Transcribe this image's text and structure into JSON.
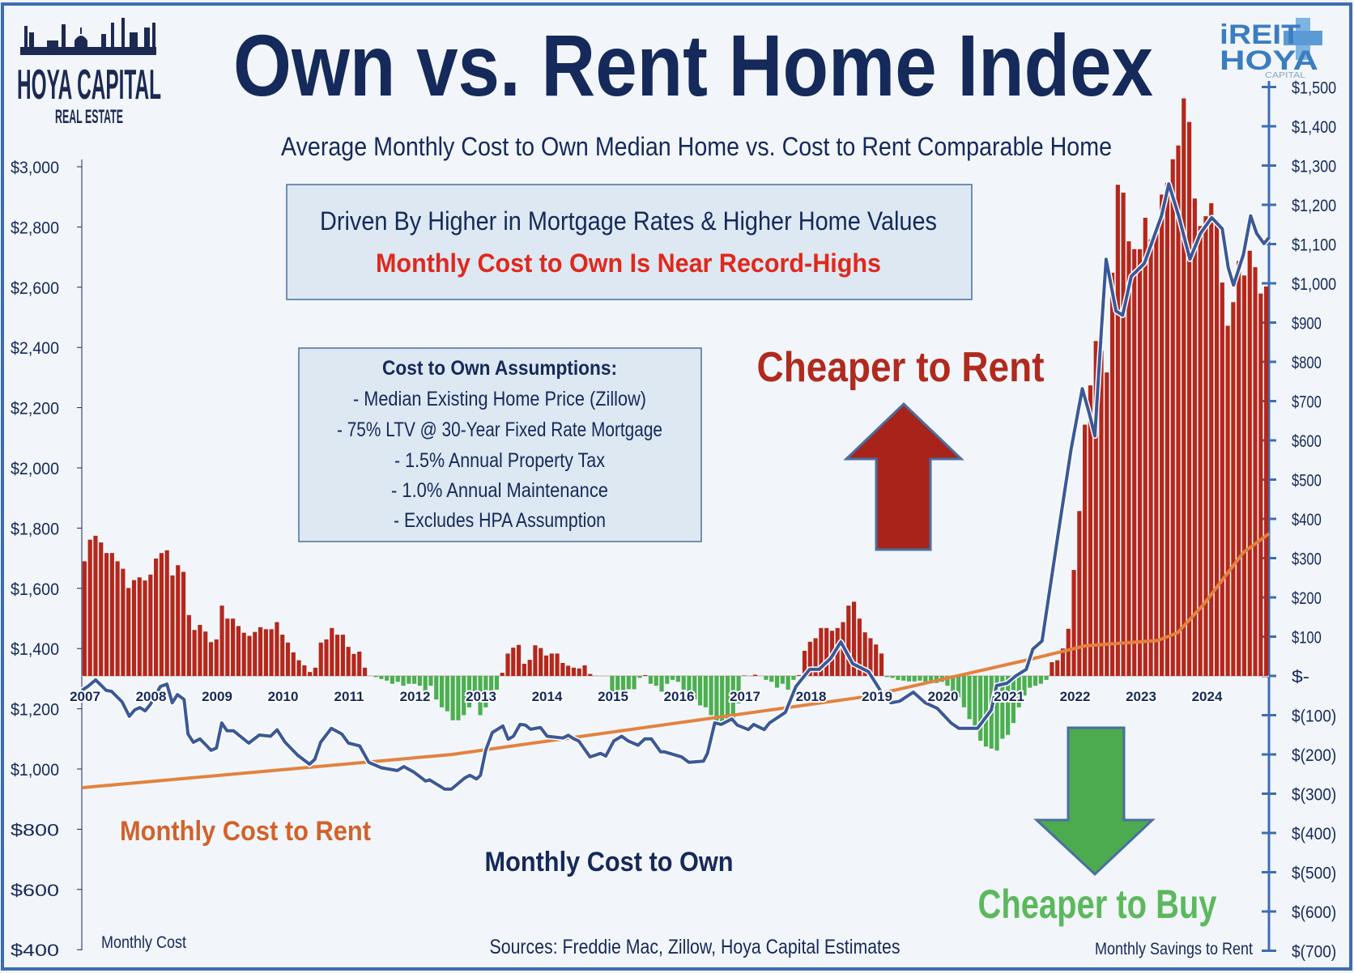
{
  "logo_left": {
    "name": "HOYA CAPITAL",
    "sub": "REAL ESTATE"
  },
  "logo_right": {
    "line1": "iREIT",
    "line2": "HOYA",
    "line3": "CAPITAL"
  },
  "title": "Own vs. Rent Home Index",
  "subtitle": "Average Monthly Cost to Own Median Home vs. Cost to Rent Comparable Home",
  "callout": {
    "line1": "Driven By Higher in Mortgage Rates & Higher Home Values",
    "line2": "Monthly Cost to Own Is Near Record-Highs"
  },
  "assumptions": {
    "header": "Cost to Own Assumptions:",
    "items": [
      "- Median Existing Home Price (Zillow)",
      "- 75% LTV @ 30-Year Fixed Rate Mortgage",
      "- 1.5% Annual Property Tax",
      "- 1.0% Annual Maintenance",
      "- Excludes HPA Assumption"
    ]
  },
  "annotations": {
    "cheaper_rent": "Cheaper to Rent",
    "cheaper_buy": "Cheaper to Buy",
    "rent_label": "Monthly Cost to Rent",
    "own_label": "Monthly Cost to Own",
    "left_axis_title": "Monthly Cost",
    "right_axis_title": "Monthly Savings to Rent",
    "sources": "Sources: Freddie Mac, Zillow, Hoya Capital Estimates"
  },
  "colors": {
    "navy": "#15295a",
    "bar_pos": "#b5271b",
    "bar_neg": "#4caf50",
    "own_line": "#3b5998",
    "rent_line": "#e3823f",
    "red_text": "#e0281c",
    "rent_text": "#d2622a",
    "buy_text": "#5cb85c",
    "frame": "#3d6db0"
  },
  "chart_data": {
    "type": "bar+line",
    "title": "Own vs. Rent Home Index",
    "x_ticks": [
      "2007",
      "2008",
      "2009",
      "2010",
      "2011",
      "2012",
      "2013",
      "2014",
      "2015",
      "2016",
      "2017",
      "2018",
      "2019",
      "2020",
      "2021",
      "2022",
      "2023",
      "2024"
    ],
    "left_axis": {
      "label": "Monthly Cost",
      "range": [
        400,
        3000
      ],
      "ticks": [
        "$3,000",
        "$2,800",
        "$2,600",
        "$2,400",
        "$2,200",
        "$2,000",
        "$1,800",
        "$1,600",
        "$1,400",
        "$1,200",
        "$1,000",
        "$800",
        "$600",
        "$400"
      ],
      "tick_values": [
        3000,
        2800,
        2600,
        2400,
        2200,
        2000,
        1800,
        1600,
        1400,
        1200,
        1000,
        800,
        600,
        400
      ]
    },
    "right_axis": {
      "label": "Monthly Savings to Rent",
      "range": [
        -700,
        1500
      ],
      "ticks": [
        "$1,500",
        "$1,400",
        "$1,300",
        "$1,200",
        "$1,100",
        "$1,000",
        "$900",
        "$800",
        "$700",
        "$600",
        "$500",
        "$400",
        "$300",
        "$200",
        "$100",
        "$-",
        "$(100)",
        "$(200)",
        "$(300)",
        "$(400)",
        "$(500)",
        "$(600)",
        "$(700)"
      ],
      "tick_values": [
        1500,
        1400,
        1300,
        1200,
        1100,
        1000,
        900,
        800,
        700,
        600,
        500,
        400,
        300,
        200,
        100,
        0,
        -100,
        -200,
        -300,
        -400,
        -500,
        -600,
        -700
      ]
    },
    "savings_series": {
      "name": "Monthly Savings to Rent",
      "start": "2007-01",
      "frequency": "monthly",
      "axis": "right",
      "values": [
        292,
        347,
        357,
        340,
        313,
        313,
        292,
        273,
        224,
        244,
        251,
        243,
        258,
        299,
        313,
        320,
        256,
        282,
        265,
        155,
        117,
        130,
        113,
        86,
        93,
        179,
        146,
        146,
        127,
        110,
        102,
        112,
        124,
        119,
        119,
        137,
        105,
        85,
        60,
        40,
        27,
        10,
        21,
        85,
        93,
        122,
        105,
        105,
        74,
        56,
        62,
        21,
        0,
        -3,
        -8,
        -12,
        -20,
        -15,
        -25,
        -20,
        -20,
        -25,
        -40,
        -25,
        -60,
        -80,
        -90,
        -113,
        -113,
        -100,
        -80,
        -60,
        -100,
        -80,
        -50,
        -35,
        8,
        57,
        72,
        79,
        31,
        41,
        78,
        71,
        52,
        57,
        57,
        33,
        26,
        21,
        19,
        27,
        5,
        0,
        0,
        0,
        -58,
        -52,
        -38,
        -34,
        -34,
        -5,
        2,
        -20,
        -25,
        -40,
        -20,
        -10,
        -15,
        -35,
        -45,
        -60,
        -75,
        -80,
        -100,
        -120,
        -120,
        -120,
        -120,
        -70,
        1,
        0,
        3,
        0,
        -10,
        -15,
        -30,
        -20,
        -35,
        -10,
        2,
        64,
        87,
        96,
        122,
        122,
        115,
        122,
        137,
        179,
        189,
        146,
        111,
        96,
        80,
        57,
        -3,
        -5,
        -10,
        -12,
        -14,
        -14,
        -12,
        -15,
        -15,
        -18,
        -15,
        -25,
        -40,
        -55,
        -80,
        -110,
        -140,
        -165,
        -180,
        -185,
        -190,
        -160,
        -150,
        -120,
        -80,
        -50,
        -30,
        -25,
        -20,
        -10,
        35,
        40,
        70,
        120,
        270,
        420,
        640,
        740,
        853,
        828,
        773,
        1027,
        1251,
        1231,
        1107,
        1087,
        1087,
        1167,
        1112,
        1142,
        1226,
        1256,
        1316,
        1351,
        1471,
        1411,
        1216,
        1146,
        1171,
        1204,
        1161,
        1002,
        892,
        952,
        1057,
        1020,
        1083,
        1041,
        974,
        992
      ]
    },
    "own_series": {
      "name": "Monthly Cost to Own",
      "axis": "left",
      "points": [
        [
          2007.0,
          1261
        ],
        [
          2007.09,
          1274
        ],
        [
          2007.21,
          1296
        ],
        [
          2007.37,
          1261
        ],
        [
          2007.45,
          1258
        ],
        [
          2007.61,
          1223
        ],
        [
          2007.72,
          1175
        ],
        [
          2007.8,
          1196
        ],
        [
          2007.88,
          1204
        ],
        [
          2007.96,
          1193
        ],
        [
          2008.04,
          1215
        ],
        [
          2008.19,
          1274
        ],
        [
          2008.29,
          1282
        ],
        [
          2008.37,
          1220
        ],
        [
          2008.45,
          1247
        ],
        [
          2008.55,
          1231
        ],
        [
          2008.61,
          1116
        ],
        [
          2008.69,
          1089
        ],
        [
          2008.79,
          1100
        ],
        [
          2008.96,
          1062
        ],
        [
          2009.04,
          1070
        ],
        [
          2009.12,
          1153
        ],
        [
          2009.2,
          1127
        ],
        [
          2009.3,
          1127
        ],
        [
          2009.53,
          1086
        ],
        [
          2009.69,
          1113
        ],
        [
          2009.86,
          1109
        ],
        [
          2009.96,
          1130
        ],
        [
          2010.08,
          1089
        ],
        [
          2010.27,
          1046
        ],
        [
          2010.45,
          1016
        ],
        [
          2010.53,
          1032
        ],
        [
          2010.62,
          1089
        ],
        [
          2010.78,
          1135
        ],
        [
          2010.94,
          1116
        ],
        [
          2011.04,
          1086
        ],
        [
          2011.21,
          1077
        ],
        [
          2011.35,
          1022
        ],
        [
          2011.54,
          1004
        ],
        [
          2011.78,
          995
        ],
        [
          2011.88,
          1008
        ],
        [
          2012.03,
          990
        ],
        [
          2012.21,
          960
        ],
        [
          2012.27,
          964
        ],
        [
          2012.5,
          933
        ],
        [
          2012.6,
          933
        ],
        [
          2012.8,
          970
        ],
        [
          2012.88,
          979
        ],
        [
          2012.98,
          967
        ],
        [
          2013.04,
          979
        ],
        [
          2013.12,
          1062
        ],
        [
          2013.22,
          1121
        ],
        [
          2013.38,
          1143
        ],
        [
          2013.46,
          1099
        ],
        [
          2013.54,
          1109
        ],
        [
          2013.64,
          1148
        ],
        [
          2013.72,
          1146
        ],
        [
          2013.8,
          1132
        ],
        [
          2013.95,
          1138
        ],
        [
          2014.05,
          1109
        ],
        [
          2014.29,
          1103
        ],
        [
          2014.37,
          1112
        ],
        [
          2014.45,
          1101
        ],
        [
          2014.53,
          1093
        ],
        [
          2014.7,
          1040
        ],
        [
          2014.86,
          1052
        ],
        [
          2014.94,
          1043
        ],
        [
          2015.06,
          1093
        ],
        [
          2015.18,
          1109
        ],
        [
          2015.28,
          1093
        ],
        [
          2015.43,
          1079
        ],
        [
          2015.53,
          1100
        ],
        [
          2015.63,
          1100
        ],
        [
          2015.77,
          1057
        ],
        [
          2015.83,
          1057
        ],
        [
          2016.09,
          1040
        ],
        [
          2016.2,
          1022
        ],
        [
          2016.42,
          1026
        ],
        [
          2016.48,
          1052
        ],
        [
          2016.59,
          1153
        ],
        [
          2016.69,
          1148
        ],
        [
          2016.85,
          1166
        ],
        [
          2016.93,
          1146
        ],
        [
          2017.1,
          1131
        ],
        [
          2017.18,
          1148
        ],
        [
          2017.34,
          1131
        ],
        [
          2017.42,
          1153
        ],
        [
          2017.66,
          1188
        ],
        [
          2017.82,
          1274
        ],
        [
          2018.03,
          1331
        ],
        [
          2018.17,
          1331
        ],
        [
          2018.35,
          1368
        ],
        [
          2018.5,
          1422
        ],
        [
          2018.68,
          1350
        ],
        [
          2018.92,
          1323
        ],
        [
          2019.1,
          1261
        ],
        [
          2019.26,
          1220
        ],
        [
          2019.39,
          1225
        ],
        [
          2019.6,
          1255
        ],
        [
          2019.78,
          1220
        ],
        [
          2019.96,
          1202
        ],
        [
          2020.17,
          1153
        ],
        [
          2020.29,
          1135
        ],
        [
          2020.57,
          1135
        ],
        [
          2020.78,
          1196
        ],
        [
          2020.86,
          1277
        ],
        [
          2021.02,
          1285
        ],
        [
          2021.15,
          1309
        ],
        [
          2021.31,
          1331
        ],
        [
          2021.41,
          1398
        ],
        [
          2021.55,
          1425
        ],
        [
          2021.79,
          1776
        ],
        [
          2021.99,
          2063
        ],
        [
          2022.16,
          2263
        ],
        [
          2022.27,
          2177
        ],
        [
          2022.35,
          2106
        ],
        [
          2022.45,
          2464
        ],
        [
          2022.52,
          2693
        ],
        [
          2022.67,
          2521
        ],
        [
          2022.77,
          2507
        ],
        [
          2022.9,
          2636
        ],
        [
          2023.1,
          2679
        ],
        [
          2023.36,
          2837
        ],
        [
          2023.47,
          2943
        ],
        [
          2023.62,
          2837
        ],
        [
          2023.79,
          2693
        ],
        [
          2023.95,
          2779
        ],
        [
          2024.12,
          2831
        ],
        [
          2024.28,
          2794
        ],
        [
          2024.37,
          2665
        ],
        [
          2024.45,
          2607
        ],
        [
          2024.6,
          2708
        ],
        [
          2024.71,
          2837
        ],
        [
          2024.8,
          2779
        ],
        [
          2024.91,
          2745
        ],
        [
          2024.99,
          2765
        ]
      ]
    },
    "rent_series": {
      "name": "Monthly Cost to Rent",
      "axis": "left",
      "points": [
        [
          2007.0,
          938
        ],
        [
          2012.6,
          1048
        ],
        [
          2018.77,
          1237
        ],
        [
          2019.3,
          1261
        ],
        [
          2021.34,
          1363
        ],
        [
          2022.2,
          1409
        ],
        [
          2023.3,
          1427
        ],
        [
          2023.6,
          1452
        ],
        [
          2024.0,
          1547
        ],
        [
          2024.3,
          1633
        ],
        [
          2024.6,
          1719
        ],
        [
          2024.99,
          1782
        ]
      ]
    }
  }
}
